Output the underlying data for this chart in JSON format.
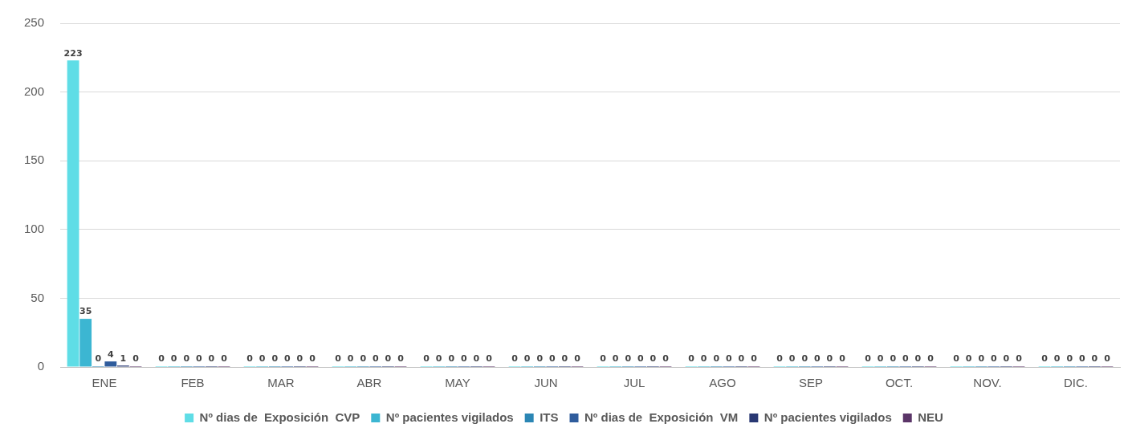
{
  "chart_data": {
    "type": "bar",
    "categories": [
      "ENE",
      "FEB",
      "MAR",
      "ABR",
      "MAY",
      "JUN",
      "JUL",
      "AGO",
      "SEP",
      "OCT.",
      "NOV.",
      "DIC."
    ],
    "series": [
      {
        "name": "Nº dias de  Exposición  CVP",
        "color": "#5fdde6",
        "values": [
          223,
          0,
          0,
          0,
          0,
          0,
          0,
          0,
          0,
          0,
          0,
          0
        ]
      },
      {
        "name": "Nº pacientes vigilados",
        "color": "#3cb6d2",
        "values": [
          35,
          0,
          0,
          0,
          0,
          0,
          0,
          0,
          0,
          0,
          0,
          0
        ]
      },
      {
        "name": "ITS",
        "color": "#2b86b4",
        "values": [
          0,
          0,
          0,
          0,
          0,
          0,
          0,
          0,
          0,
          0,
          0,
          0
        ]
      },
      {
        "name": "Nº dias de  Exposición  VM",
        "color": "#2f5c9c",
        "values": [
          4,
          0,
          0,
          0,
          0,
          0,
          0,
          0,
          0,
          0,
          0,
          0
        ]
      },
      {
        "name": "Nº pacientes vigilados",
        "color": "#293873",
        "values": [
          1,
          0,
          0,
          0,
          0,
          0,
          0,
          0,
          0,
          0,
          0,
          0
        ]
      },
      {
        "name": "NEU",
        "color": "#5b3568",
        "values": [
          0,
          0,
          0,
          0,
          0,
          0,
          0,
          0,
          0,
          0,
          0,
          0
        ]
      }
    ],
    "ylim": [
      0,
      250
    ],
    "yticks": [
      0,
      50,
      100,
      150,
      200,
      250
    ],
    "grid": "y",
    "legend": "bottom",
    "data_labels": true
  }
}
